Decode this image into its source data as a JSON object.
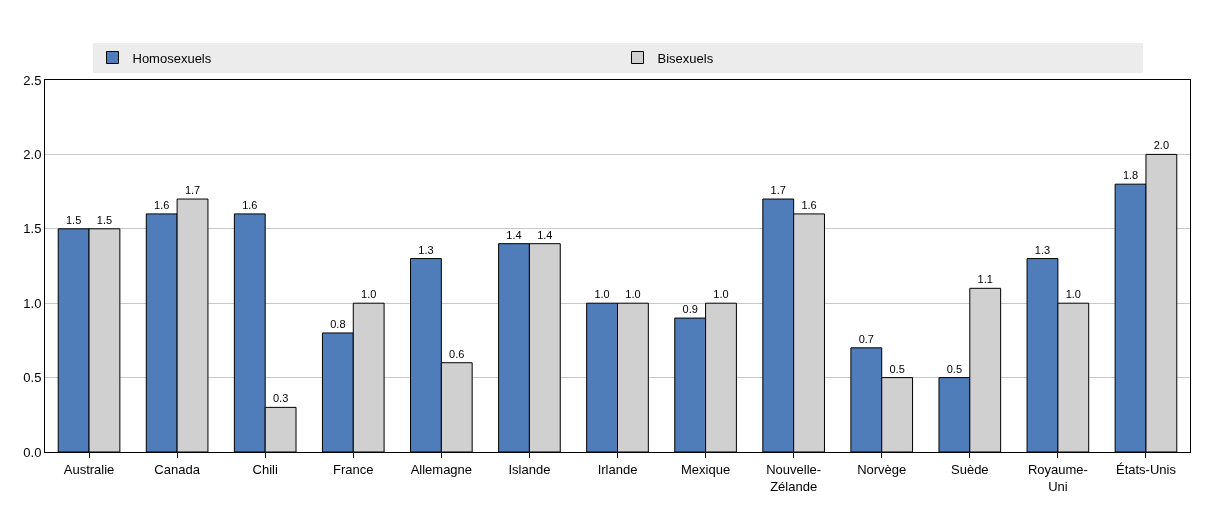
{
  "chart_data": {
    "type": "bar",
    "categories": [
      "Australie",
      "Canada",
      "Chili",
      "France",
      "Allemagne",
      "Islande",
      "Irlande",
      "Mexique",
      "Nouvelle-Zélande",
      "Norvège",
      "Suède",
      "Royaume-Uni",
      "États-Unis"
    ],
    "series": [
      {
        "name": "Homosexuels",
        "color": "#4e7dba",
        "values": [
          1.5,
          1.6,
          1.6,
          0.8,
          1.3,
          1.4,
          1.0,
          0.9,
          1.7,
          0.7,
          0.5,
          1.3,
          1.8
        ],
        "value_labels": [
          "1.5",
          "1.6",
          "1.6",
          "0.8",
          "1.3",
          "1.4",
          "1.0",
          "0.9",
          "1.7",
          "0.7",
          "0.5",
          "1.3",
          "1.8"
        ]
      },
      {
        "name": "Bisexuels",
        "color": "#d0d0d0",
        "values": [
          1.5,
          1.7,
          0.3,
          1.0,
          0.6,
          1.4,
          1.0,
          1.0,
          1.6,
          0.5,
          1.1,
          1.0,
          2.0
        ],
        "value_labels": [
          "1.5",
          "1.7",
          "0.3",
          "1.0",
          "0.6",
          "1.4",
          "1.0",
          "1.0",
          "1.6",
          "0.5",
          "1.1",
          "1.0",
          "2.0"
        ]
      }
    ],
    "ylim": [
      0,
      2.5
    ],
    "yticks": [
      {
        "value": 0,
        "label": "0.0"
      },
      {
        "value": 0.5,
        "label": "0.5"
      },
      {
        "value": 1,
        "label": "1.0"
      },
      {
        "value": 1.5,
        "label": "1.5"
      },
      {
        "value": 2,
        "label": "2.0"
      },
      {
        "value": 2.5,
        "label": "2.5"
      }
    ],
    "grid": "y",
    "legend": "top"
  }
}
